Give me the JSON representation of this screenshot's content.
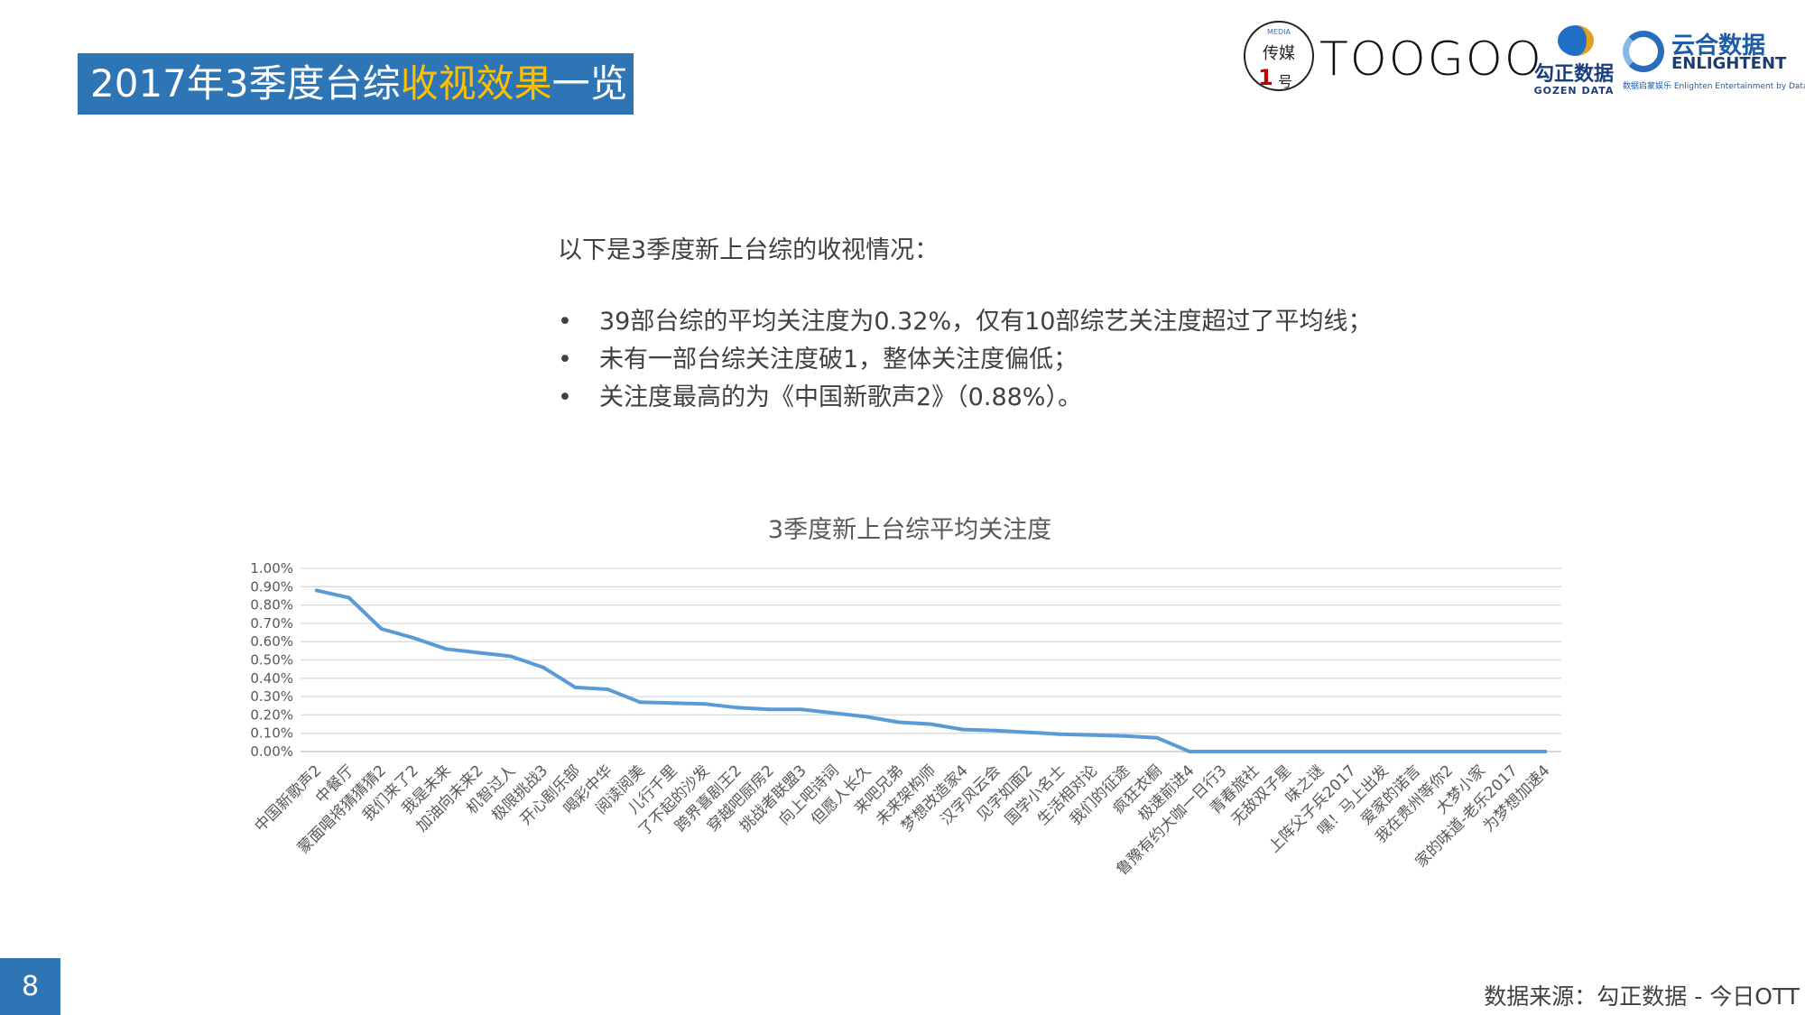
{
  "header": {
    "title_pre": "2017年3季度台综",
    "title_highlight": "收视效果",
    "title_post": "一览",
    "title_bg": "#2e75b6",
    "highlight_color": "#ffc000"
  },
  "logos": {
    "media_top": "MEDIA",
    "media_name": "传媒",
    "media_num": "1",
    "media_suffix": "号",
    "toogoo": "TOOGOO",
    "gozen_cn": "勾正数据",
    "gozen_en": "GOZEN DATA",
    "enlight_cn": "云合数据",
    "enlight_en": "ENLIGHTENT",
    "enlight_tag": "数据启蒙娱乐 Enlighten Entertainment by Data"
  },
  "intro": "以下是3季度新上台综的收视情况：",
  "bullets": [
    "39部台综的平均关注度为0.32%，仅有10部综艺关注度超过了平均线；",
    "未有一部台综关注度破1，整体关注度偏低；",
    "关注度最高的为《中国新歌声2》（0.88%）。"
  ],
  "bullet_mark": "•",
  "chart_data": {
    "type": "line",
    "title": "3季度新上台综平均关注度",
    "xlabel": "",
    "ylabel": "",
    "ylim": [
      0,
      0.01
    ],
    "y_ticks": [
      "0.00%",
      "0.10%",
      "0.20%",
      "0.30%",
      "0.40%",
      "0.50%",
      "0.60%",
      "0.70%",
      "0.80%",
      "0.90%",
      "1.00%"
    ],
    "grid": true,
    "line_color": "#5b9bd5",
    "categories": [
      "中国新歌声2",
      "中餐厅",
      "蒙面唱将猜猜猜2",
      "我们来了2",
      "我是未来",
      "加油向未来2",
      "机智过人",
      "极限挑战3",
      "开心剧乐部",
      "喝彩中华",
      "阅读阅美",
      "儿行千里",
      "了不起的沙发",
      "跨界喜剧王2",
      "穿越吧厨房2",
      "挑战者联盟3",
      "向上吧诗词",
      "但愿人长久",
      "来吧兄弟",
      "未来架构师",
      "梦想改造家4",
      "汉字风云会",
      "见字如面2",
      "国学小名士",
      "生活相对论",
      "我们的征途",
      "疯狂衣橱",
      "极速前进4",
      "鲁豫有约大咖一日行3",
      "青春旅社",
      "无敌双子星",
      "味之谜",
      "上阵父子兵2017",
      "嘿！马上出发",
      "爱家的诺言",
      "我在贵州等你2",
      "大梦小家",
      "家的味道-老乐2017",
      "为梦想加速4"
    ],
    "values": [
      0.0088,
      0.0084,
      0.0067,
      0.0062,
      0.0056,
      0.0054,
      0.0052,
      0.0046,
      0.0035,
      0.0034,
      0.0027,
      0.00265,
      0.0026,
      0.0024,
      0.0023,
      0.0023,
      0.0021,
      0.0019,
      0.0016,
      0.0015,
      0.0012,
      0.00115,
      0.00105,
      0.00095,
      0.0009,
      0.00085,
      0.00075,
      0.0,
      0.0,
      0.0,
      0.0,
      0.0,
      0.0,
      0.0,
      0.0,
      0.0,
      0.0,
      0.0,
      0.0
    ]
  },
  "footer": {
    "page": "8",
    "source": "数据来源：勾正数据 - 今日OTT"
  }
}
